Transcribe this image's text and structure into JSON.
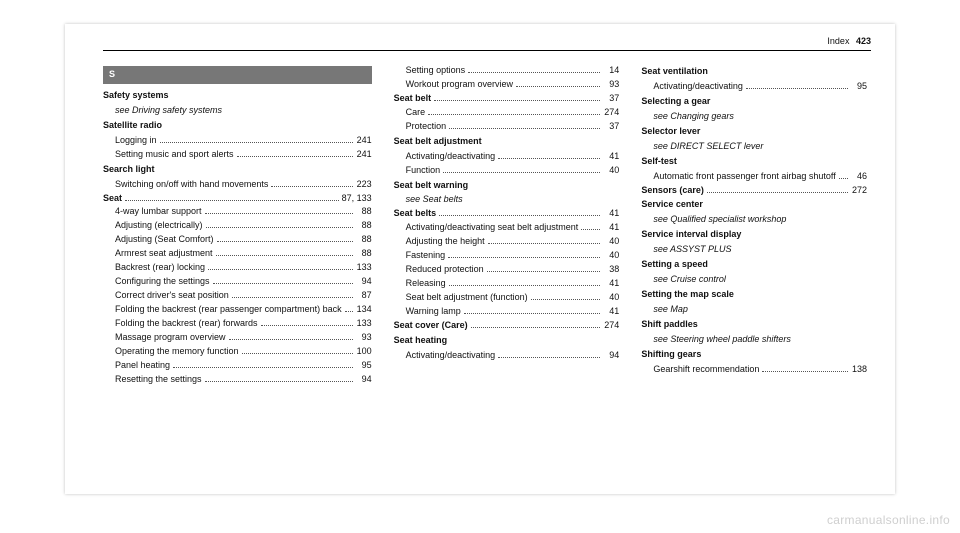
{
  "header": {
    "section": "Index",
    "page_number": "423"
  },
  "section_letter": "S",
  "watermark": "carmanualsonline.info",
  "columns": [
    [
      {
        "type": "term",
        "text": "Safety systems"
      },
      {
        "type": "see",
        "text": "see Driving safety systems"
      },
      {
        "type": "term",
        "text": "Satellite radio"
      },
      {
        "type": "sub",
        "label": "Logging in",
        "page": "241"
      },
      {
        "type": "sub",
        "label": "Setting music and sport alerts",
        "page": "241"
      },
      {
        "type": "term",
        "text": "Search light"
      },
      {
        "type": "sub",
        "label": "Switching on/off with hand movements",
        "page": "223"
      },
      {
        "type": "topline",
        "label": "Seat",
        "page": "87, 133"
      },
      {
        "type": "sub",
        "label": "4-way lumbar support",
        "page": "88"
      },
      {
        "type": "sub",
        "label": "Adjusting (electrically)",
        "page": "88"
      },
      {
        "type": "sub",
        "label": "Adjusting (Seat Comfort)",
        "page": "88"
      },
      {
        "type": "sub",
        "label": "Armrest seat adjustment",
        "page": "88"
      },
      {
        "type": "sub",
        "label": "Backrest (rear) locking",
        "page": "133"
      },
      {
        "type": "sub",
        "label": "Configuring the settings",
        "page": "94"
      },
      {
        "type": "sub",
        "label": "Correct driver's seat position",
        "page": "87"
      },
      {
        "type": "sub",
        "label": "Folding the backrest (rear passenger compartment) back",
        "page": "134"
      },
      {
        "type": "sub",
        "label": "Folding the backrest (rear) forwards",
        "page": "133"
      },
      {
        "type": "sub",
        "label": "Massage program overview",
        "page": "93"
      },
      {
        "type": "sub",
        "label": "Operating the memory function",
        "page": "100"
      },
      {
        "type": "sub",
        "label": "Panel heating",
        "page": "95"
      },
      {
        "type": "sub",
        "label": "Resetting the settings",
        "page": "94"
      }
    ],
    [
      {
        "type": "sub",
        "label": "Setting options",
        "page": "14"
      },
      {
        "type": "sub",
        "label": "Workout program overview",
        "page": "93"
      },
      {
        "type": "topline",
        "label": "Seat belt",
        "page": "37"
      },
      {
        "type": "sub",
        "label": "Care",
        "page": "274"
      },
      {
        "type": "sub",
        "label": "Protection",
        "page": "37"
      },
      {
        "type": "term",
        "text": "Seat belt adjustment"
      },
      {
        "type": "sub",
        "label": "Activating/deactivating",
        "page": "41"
      },
      {
        "type": "sub",
        "label": "Function",
        "page": "40"
      },
      {
        "type": "term",
        "text": "Seat belt warning"
      },
      {
        "type": "see",
        "text": "see Seat belts"
      },
      {
        "type": "topline",
        "label": "Seat belts",
        "page": "41"
      },
      {
        "type": "sub",
        "label": "Activating/deactivating seat belt adjustment",
        "page": "41"
      },
      {
        "type": "sub",
        "label": "Adjusting the height",
        "page": "40"
      },
      {
        "type": "sub",
        "label": "Fastening",
        "page": "40"
      },
      {
        "type": "sub",
        "label": "Reduced protection",
        "page": "38"
      },
      {
        "type": "sub",
        "label": "Releasing",
        "page": "41"
      },
      {
        "type": "sub",
        "label": "Seat belt adjustment (function)",
        "page": "40"
      },
      {
        "type": "sub",
        "label": "Warning lamp",
        "page": "41"
      },
      {
        "type": "topline",
        "label": "Seat cover (Care)",
        "page": "274"
      },
      {
        "type": "term",
        "text": "Seat heating"
      },
      {
        "type": "sub",
        "label": "Activating/deactivating",
        "page": "94"
      }
    ],
    [
      {
        "type": "term",
        "text": "Seat ventilation"
      },
      {
        "type": "sub",
        "label": "Activating/deactivating",
        "page": "95"
      },
      {
        "type": "term",
        "text": "Selecting a gear"
      },
      {
        "type": "see",
        "text": "see Changing gears"
      },
      {
        "type": "term",
        "text": "Selector lever"
      },
      {
        "type": "see",
        "text": "see DIRECT SELECT lever"
      },
      {
        "type": "term",
        "text": "Self-test"
      },
      {
        "type": "sub",
        "label": "Automatic front passenger front airbag shutoff",
        "page": "46"
      },
      {
        "type": "topline",
        "label": "Sensors (care)",
        "page": "272"
      },
      {
        "type": "term",
        "text": "Service center"
      },
      {
        "type": "see",
        "text": "see Qualified specialist workshop"
      },
      {
        "type": "term",
        "text": "Service interval display"
      },
      {
        "type": "see",
        "text": "see ASSYST PLUS"
      },
      {
        "type": "term",
        "text": "Setting a speed"
      },
      {
        "type": "see",
        "text": "see Cruise control"
      },
      {
        "type": "term",
        "text": "Setting the map scale"
      },
      {
        "type": "see",
        "text": "see Map"
      },
      {
        "type": "term",
        "text": "Shift paddles"
      },
      {
        "type": "see",
        "text": "see Steering wheel paddle shifters"
      },
      {
        "type": "term",
        "text": "Shifting gears"
      },
      {
        "type": "sub",
        "label": "Gearshift recommendation",
        "page": "138"
      }
    ]
  ]
}
